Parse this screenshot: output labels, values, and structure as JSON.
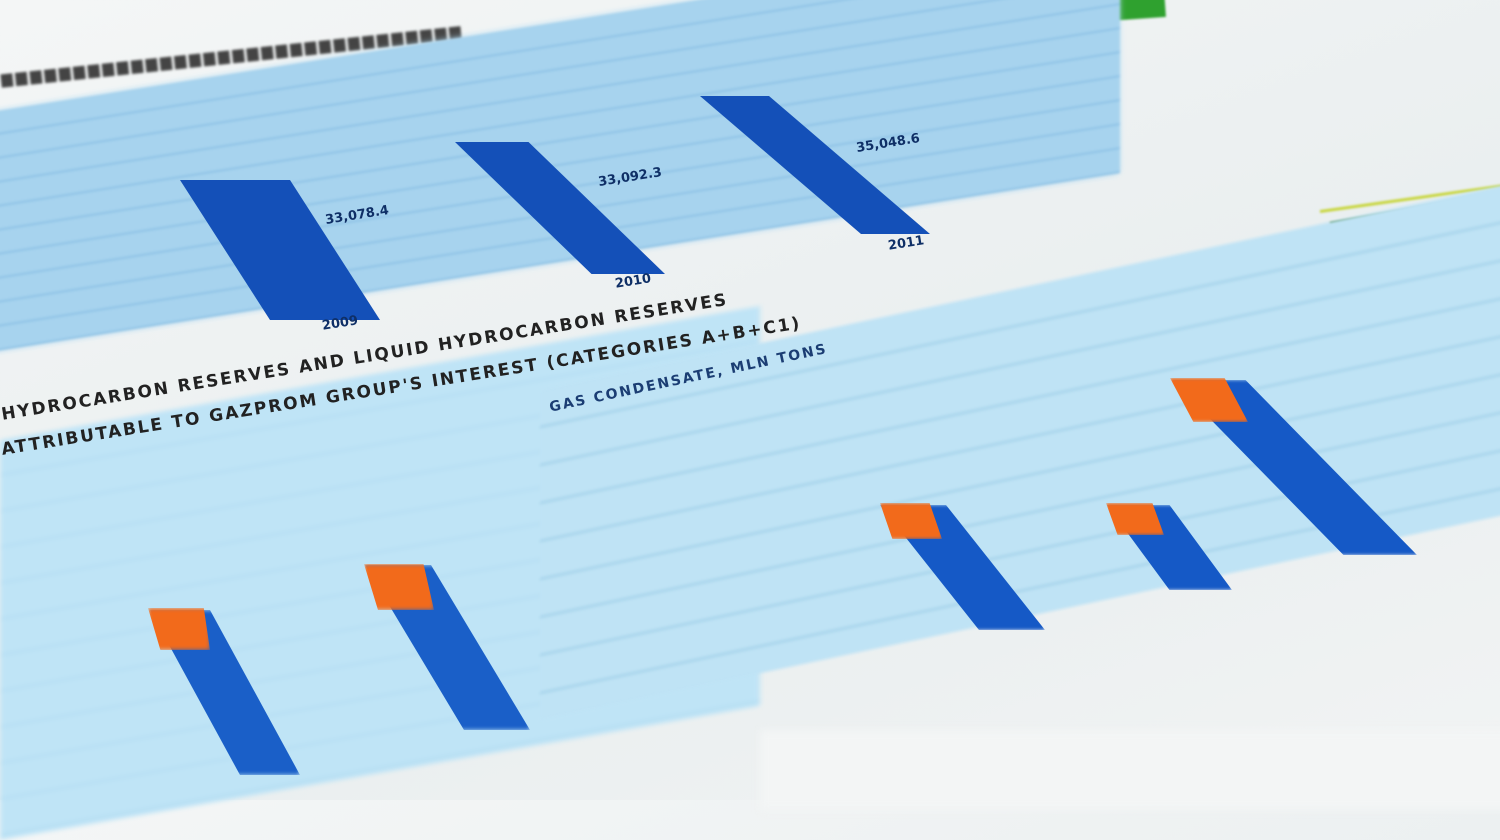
{
  "photo": {
    "subject": "printed financial report charts",
    "colors": {
      "bar": "#1559c6",
      "cap": "#f26a1b",
      "panel": "#a7d3ee",
      "green_tab": "#2fa12f"
    },
    "top_chart": {
      "years": [
        "2009",
        "2010",
        "2011"
      ],
      "value_labels": [
        "33,078.4",
        "33,092.3",
        "35,048.6"
      ]
    },
    "section_heading": {
      "line1": "HYDROCARBON RESERVES AND LIQUID HYDROCARBON RESERVES",
      "line2": "ATTRIBUTABLE TO GAZPROM GROUP'S INTEREST (CATEGORIES A+B+C1)"
    },
    "gas_chart": {
      "title": "GAS CONDENSATE, MLN TONS"
    }
  }
}
